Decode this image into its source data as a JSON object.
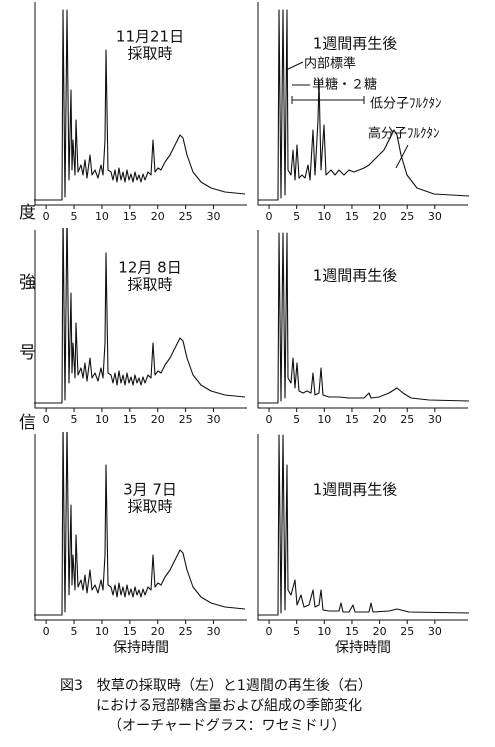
{
  "y_label": "信号強度",
  "x_label": "保持時間",
  "xlim": [
    -2,
    36
  ],
  "xticks": [
    0,
    5,
    10,
    15,
    20,
    25,
    30
  ],
  "panels": [
    {
      "lines": [
        "11月21日",
        "採取時"
      ]
    },
    {
      "lines": [
        "1週間再生後"
      ]
    },
    {
      "lines": [
        "12月 8日",
        "採取時"
      ]
    },
    {
      "lines": [
        "1週間再生後"
      ]
    },
    {
      "lines": [
        "3月 7日",
        "採取時"
      ]
    },
    {
      "lines": [
        "1週間再生後"
      ]
    }
  ],
  "annotations": [
    "内部標準",
    "単糖・２糖",
    "低分子ﾌﾙｸﾀﾝ",
    "高分子ﾌﾙｸﾀﾝ"
  ],
  "caption": [
    "図3　牧草の採取時（左）と1週間の再生後（右）",
    "における冠部糖含量および組成の季節変化",
    "（オーチャードグラス：ワセミドリ）"
  ]
}
